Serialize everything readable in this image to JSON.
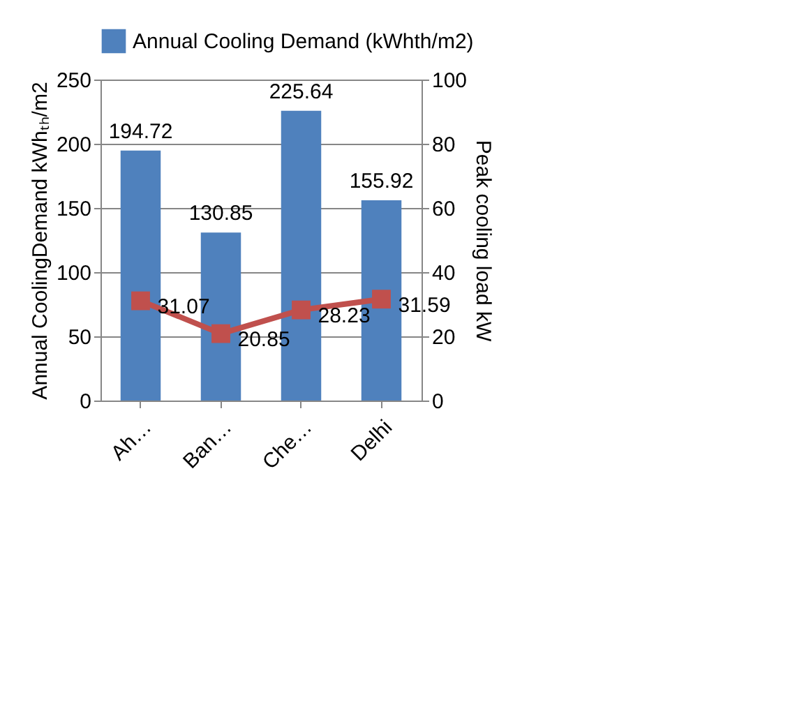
{
  "chart_data": {
    "type": "bar",
    "categories": [
      "Ah…",
      "Ban…",
      "Che…",
      "Delhi"
    ],
    "ylabel": "Annual CoolingDemand kWhₜₕ/m2",
    "y2label": "Peak cooling load kW",
    "ylim": [
      0,
      250
    ],
    "yticks": [
      0,
      50,
      100,
      150,
      200,
      250
    ],
    "y2lim": [
      0,
      100
    ],
    "y2ticks": [
      0,
      20,
      40,
      60,
      80,
      100
    ],
    "grid": "y",
    "legend": "top",
    "data_labels": true,
    "marker": "square",
    "series": [
      {
        "name": "Annual  Cooling Demand (kWhth/m2)",
        "color": "#4f81bd",
        "values": [
          194.72,
          130.85,
          225.64,
          155.92
        ]
      },
      {
        "type": "line",
        "axis": "y2",
        "color": "#c0504d",
        "values": [
          31.07,
          20.85,
          28.23,
          31.59
        ]
      }
    ]
  }
}
